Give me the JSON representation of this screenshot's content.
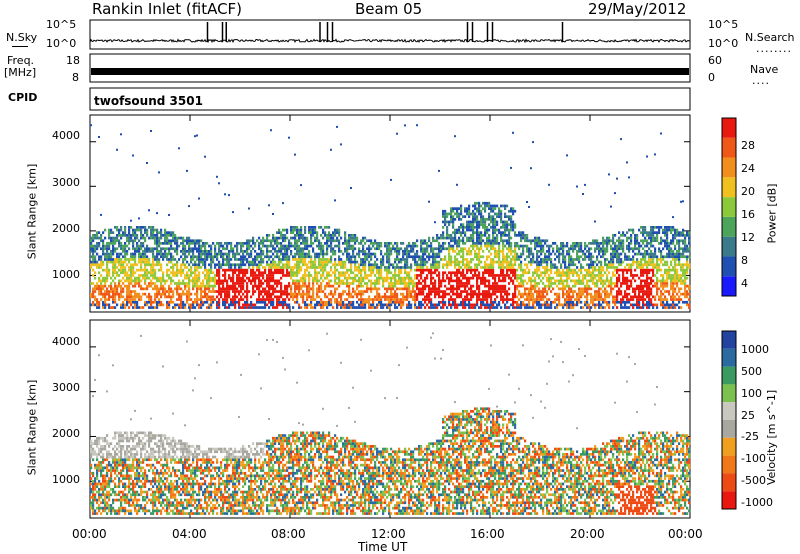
{
  "header": {
    "station": "Rankin Inlet (fitACF)",
    "beam": "Beam 05",
    "date": "29/May/2012"
  },
  "left_labels": {
    "nsky": "N.Sky",
    "freq": "Freq.",
    "freq_unit": "[MHz]",
    "cpid": "CPID"
  },
  "right_labels": {
    "nsearch": "N.Search",
    "nave": "Nave"
  },
  "cpid_text": "twofsound 3501",
  "colors": {
    "power": [
      "#1a1aff",
      "#1f4fb0",
      "#3a7a8a",
      "#4ca35a",
      "#8cc83c",
      "#f0c020",
      "#f28e1e",
      "#f05818",
      "#e81a10"
    ],
    "velocity": [
      "#2244a0",
      "#2a6aa0",
      "#3a9a60",
      "#7cc050",
      "#c8c8c0",
      "#a8a8a0",
      "#f0a020",
      "#f07818",
      "#ee4a14",
      "#e81810"
    ]
  },
  "chart_data": [
    {
      "type": "line",
      "name": "noise-panel",
      "ylabel_left": "N.Sky",
      "ylabel_right": "N.Search",
      "left_ticks": [
        "10^5",
        "10^0"
      ],
      "right_ticks": [
        "10^5",
        "10^0"
      ],
      "spikes_hours": [
        4.7,
        5.3,
        5.45,
        9.2,
        9.5,
        9.7,
        15.1,
        15.3,
        15.9,
        16.1,
        18.9
      ]
    },
    {
      "type": "line",
      "name": "freq-nave-panel",
      "ylabel_left": "Freq. [MHz]",
      "ylabel_right": "Nave",
      "left_ticks": [
        "18",
        "8"
      ],
      "right_ticks": [
        "60",
        "0"
      ]
    },
    {
      "type": "heatmap",
      "name": "power",
      "xlabel": "",
      "ylabel": "Slant Range [km]",
      "x_ticks": [
        "00:00",
        "04:00",
        "08:00",
        "12:00",
        "16:00",
        "20:00",
        "00:00"
      ],
      "y_ticks": [
        1000,
        2000,
        3000,
        4000
      ],
      "ylim": [
        180,
        4600
      ],
      "colorbar_label": "Power [dB]",
      "colorbar_ticks": [
        4,
        8,
        12,
        16,
        20,
        24,
        28
      ],
      "vrange": [
        0,
        30
      ]
    },
    {
      "type": "heatmap",
      "name": "velocity",
      "xlabel": "Time UT",
      "ylabel": "Slant Range [km]",
      "x_ticks": [
        "00:00",
        "04:00",
        "08:00",
        "12:00",
        "16:00",
        "20:00",
        "00:00"
      ],
      "y_ticks": [
        1000,
        2000,
        3000,
        4000
      ],
      "ylim": [
        180,
        4600
      ],
      "colorbar_label": "Velocity [m s^-1]",
      "colorbar_ticks": [
        "1000",
        "500",
        "100",
        "25",
        "-25",
        "-100",
        "-500",
        "-1000"
      ]
    }
  ]
}
